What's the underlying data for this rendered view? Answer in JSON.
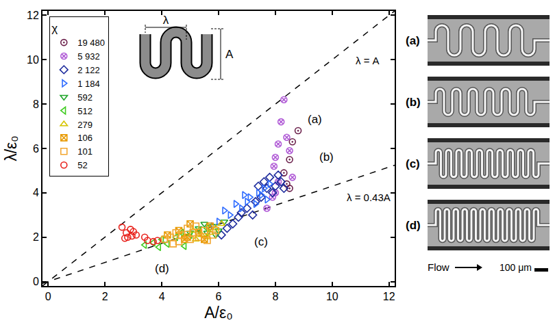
{
  "chart_data": {
    "type": "scatter",
    "x_label": "A/ε₀",
    "y_label": "λ/ε₀",
    "legend_title": "χ",
    "legend": "upper left",
    "grid": false,
    "xlim": [
      -0.2,
      12.2
    ],
    "ylim": [
      -0.2,
      12.2
    ],
    "xticks": [
      0,
      2,
      4,
      6,
      8,
      10,
      12
    ],
    "yticks": [
      0,
      2,
      4,
      6,
      8,
      10,
      12
    ],
    "reference_lines": [
      {
        "label": "λ = A",
        "slope": 1,
        "line_style": "dashed"
      },
      {
        "label": "λ = 0.43A",
        "slope": 0.43,
        "line_style": "dashed"
      }
    ],
    "series": [
      {
        "name": "19 480",
        "color": "#6a1f4a",
        "marker": "circle-open-dot",
        "x": [
          8.3,
          8.4,
          8.5,
          8.6,
          8.8,
          8.5
        ],
        "y": [
          4.9,
          4.4,
          5.5,
          6.3,
          6.8,
          4.2
        ]
      },
      {
        "name": "5 932",
        "color": "#b05ad6",
        "marker": "circle-x-open",
        "x": [
          7.7,
          7.9,
          8.0,
          8.1,
          8.0,
          8.1,
          8.2,
          8.3,
          8.4,
          8.5,
          8.6,
          7.95
        ],
        "y": [
          3.3,
          3.8,
          4.0,
          4.5,
          5.6,
          6.2,
          7.2,
          8.2,
          6.5,
          5.9,
          4.7,
          5.2
        ]
      },
      {
        "name": "2 122",
        "color": "#1c2a9c",
        "marker": "diamond-open",
        "x": [
          6.1,
          6.3,
          6.5,
          6.7,
          6.8,
          7.0,
          7.2,
          7.3,
          7.5,
          7.6,
          7.7,
          7.8,
          7.9,
          8.0,
          8.1,
          8.2,
          7.4,
          8.3
        ],
        "y": [
          2.1,
          2.4,
          2.6,
          2.9,
          3.1,
          3.3,
          3.0,
          3.6,
          3.8,
          4.5,
          4.2,
          4.7,
          4.0,
          4.3,
          4.8,
          4.5,
          4.3,
          4.2
        ]
      },
      {
        "name": "1 184",
        "color": "#2f6cff",
        "marker": "triangle-right-open",
        "x": [
          5.8,
          6.0,
          6.2,
          6.4,
          6.6,
          6.8,
          7.0,
          7.1,
          7.3,
          7.5,
          7.6,
          7.7,
          7.8,
          6.9,
          7.4
        ],
        "y": [
          2.5,
          2.7,
          3.2,
          3.0,
          3.5,
          3.3,
          3.6,
          3.8,
          3.5,
          3.9,
          4.2,
          3.7,
          4.4,
          3.9,
          4.0
        ]
      },
      {
        "name": "592",
        "color": "#1fa52a",
        "marker": "triangle-down-open",
        "x": [
          5.0,
          5.3,
          5.6,
          5.8,
          6.0,
          6.2,
          5.5,
          5.9
        ],
        "y": [
          2.2,
          2.4,
          2.2,
          2.5,
          2.3,
          2.7,
          2.6,
          2.1
        ]
      },
      {
        "name": "512",
        "color": "#3fcc1f",
        "marker": "triangle-left-open",
        "x": [
          3.4,
          3.7,
          3.9,
          4.2,
          4.5,
          4.7,
          5.0,
          5.3,
          5.6,
          4.0,
          4.8
        ],
        "y": [
          1.65,
          1.75,
          1.55,
          1.7,
          2.0,
          2.2,
          2.1,
          2.3,
          2.4,
          1.9,
          1.6
        ]
      },
      {
        "name": "279",
        "color": "#d6c400",
        "marker": "triangle-up-open",
        "x": [
          4.8,
          5.1,
          5.4,
          5.7,
          5.9,
          6.1,
          5.6,
          5.2
        ],
        "y": [
          2.0,
          2.3,
          2.1,
          2.2,
          2.4,
          2.6,
          2.0,
          1.9
        ]
      },
      {
        "name": "106",
        "color": "#e89a00",
        "marker": "square-x-open",
        "x": [
          4.2,
          4.6,
          4.8,
          5.0,
          5.3,
          5.5,
          5.7,
          4.9
        ],
        "y": [
          2.1,
          2.3,
          1.9,
          2.6,
          2.2,
          1.9,
          2.5,
          2.0
        ]
      },
      {
        "name": "101",
        "color": "#f2a630",
        "marker": "square-open",
        "x": [
          4.1,
          4.3,
          4.5,
          4.6,
          4.7,
          4.9,
          5.0,
          5.1,
          5.3,
          5.5,
          5.6,
          5.8,
          4.4,
          5.2,
          5.9
        ],
        "y": [
          1.9,
          2.0,
          2.2,
          1.8,
          2.1,
          2.4,
          1.9,
          2.2,
          2.0,
          2.3,
          1.85,
          2.1,
          1.7,
          2.5,
          2.3
        ]
      },
      {
        "name": "52",
        "color": "#e8201a",
        "marker": "circle-open",
        "x": [
          2.6,
          2.75,
          2.8,
          2.9,
          2.95,
          3.0,
          2.7,
          3.1,
          3.4,
          3.5,
          3.7,
          3.85
        ],
        "y": [
          2.45,
          2.2,
          2.0,
          2.35,
          2.05,
          2.25,
          1.95,
          2.1,
          2.0,
          1.85,
          1.8,
          1.85
        ]
      }
    ],
    "annotations": [
      {
        "text": "(a)",
        "x": 9.4,
        "y": 7.3
      },
      {
        "text": "(b)",
        "x": 9.8,
        "y": 5.6
      },
      {
        "text": "(c)",
        "x": 7.5,
        "y": 1.8
      },
      {
        "text": "(d)",
        "x": 4.0,
        "y": 0.6
      }
    ],
    "inset": {
      "labels": [
        "λ",
        "A"
      ]
    }
  },
  "images": {
    "type": "micrographs",
    "labels": [
      "(a)",
      "(b)",
      "(c)",
      "(d)"
    ],
    "flow_label": "Flow",
    "scale_bar_label": "100 μm"
  }
}
